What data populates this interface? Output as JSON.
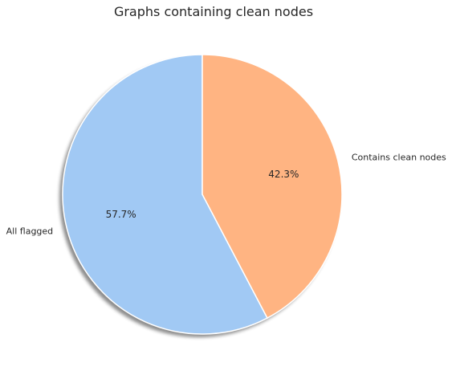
{
  "chart_data": {
    "type": "pie",
    "title": "Graphs containing clean nodes",
    "labels": [
      "All flagged",
      "Contains clean nodes"
    ],
    "values": [
      57.7,
      42.3
    ],
    "percent_labels": [
      "57.7%",
      "42.3%"
    ],
    "colors": [
      "#a1c9f4",
      "#ffb482"
    ],
    "start_angle_deg": 90,
    "direction": "clockwise-from-top-for-second-slice",
    "shadow": true,
    "legend": "none"
  }
}
